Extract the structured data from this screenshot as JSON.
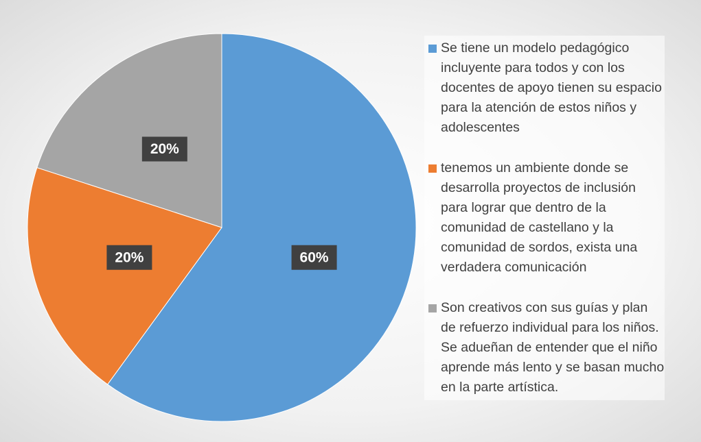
{
  "chart_data": {
    "type": "pie",
    "categories": [
      "Se tiene un modelo pedagógico incluyente para todos y con los docentes de apoyo tienen su espacio para la atención de estos niños y adolescentes",
      "tenemos un ambiente donde se desarrolla proyectos de inclusión para lograr que dentro de la comunidad de castellano y la comunidad de sordos, exista una verdadera comunicación",
      "Son creativos con sus guías y plan de refuerzo individual para los niños. Se adueñan de entender que el niño aprende más lento y se basan mucho en la parte artística."
    ],
    "values": [
      60,
      20,
      20
    ],
    "value_labels": [
      "60%",
      "20%",
      "20%"
    ],
    "colors": [
      "#5b9bd5",
      "#ed7d31",
      "#a5a5a5"
    ],
    "legend": "right"
  }
}
